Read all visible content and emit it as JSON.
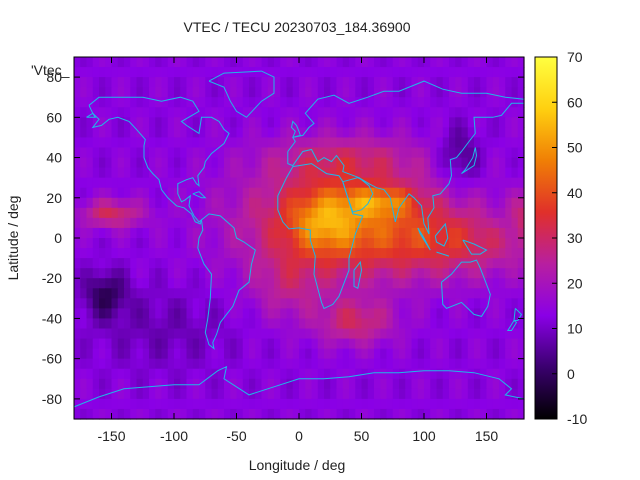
{
  "chart_data": {
    "type": "heatmap",
    "title": "VTEC / TECU 20230703_184.36900",
    "xlabel": "Longitude / deg",
    "ylabel": "Latitude / deg",
    "legend_key": "'Vtec_",
    "xlim": [
      -180,
      180
    ],
    "ylim": [
      -90,
      90
    ],
    "x_ticks": [
      -150,
      -100,
      -50,
      0,
      50,
      100,
      150
    ],
    "y_ticks": [
      -80,
      -60,
      -40,
      -20,
      0,
      20,
      40,
      60,
      80
    ],
    "colorbar": {
      "range": [
        -10,
        70
      ],
      "ticks": [
        -10,
        0,
        10,
        20,
        30,
        40,
        50,
        60,
        70
      ],
      "colormap": [
        "#000000",
        "#3a006e",
        "#8a00e6",
        "#b81fa0",
        "#e0302a",
        "#f07f05",
        "#ffd010",
        "#ffff40"
      ]
    },
    "grid": false,
    "features": [
      {
        "type": "peak",
        "lon": 20,
        "lat": 10,
        "tecu": 62
      },
      {
        "type": "peak",
        "lon": 60,
        "lat": 18,
        "tecu": 66
      },
      {
        "type": "band",
        "lon_range": [
          -40,
          170
        ],
        "lat_range": [
          -20,
          30
        ],
        "tecu": 40
      },
      {
        "type": "high",
        "lon": -150,
        "lat": 12,
        "tecu": 38
      },
      {
        "type": "high",
        "lon": 45,
        "lat": -42,
        "tecu": 35
      },
      {
        "type": "low",
        "lon": -155,
        "lat": -28,
        "tecu": 2
      },
      {
        "type": "low",
        "lon": 128,
        "lat": 40,
        "tecu": 3
      },
      {
        "type": "low",
        "lon": 170,
        "lat": 8,
        "tecu": 10
      }
    ]
  }
}
